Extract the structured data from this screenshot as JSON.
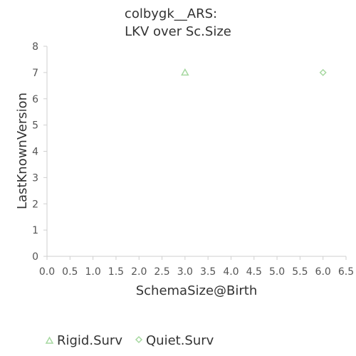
{
  "chart_data": {
    "type": "scatter",
    "title": [
      "colbygk__ARS:",
      "LKV over Sc.Size"
    ],
    "xlabel": "SchemaSize@Birth",
    "ylabel": "LastKnownVersion",
    "xlim": [
      0,
      6.5
    ],
    "ylim": [
      0,
      8
    ],
    "x_ticks": [
      "0.0",
      "0.5",
      "1.0",
      "1.5",
      "2.0",
      "2.5",
      "3.0",
      "3.5",
      "4.0",
      "4.5",
      "5.0",
      "5.5",
      "6.0",
      "6.5"
    ],
    "y_ticks": [
      "0",
      "1",
      "2",
      "3",
      "4",
      "5",
      "6",
      "7",
      "8"
    ],
    "grid": false,
    "legend_position": "bottom-left",
    "series": [
      {
        "name": "Rigid.Surv",
        "marker": "triangle",
        "color": "#a6d8a0",
        "points": [
          {
            "x": 3,
            "y": 7
          }
        ]
      },
      {
        "name": "Quiet.Surv",
        "marker": "diamond",
        "color": "#a6d8a0",
        "points": [
          {
            "x": 6,
            "y": 7
          }
        ]
      }
    ]
  }
}
